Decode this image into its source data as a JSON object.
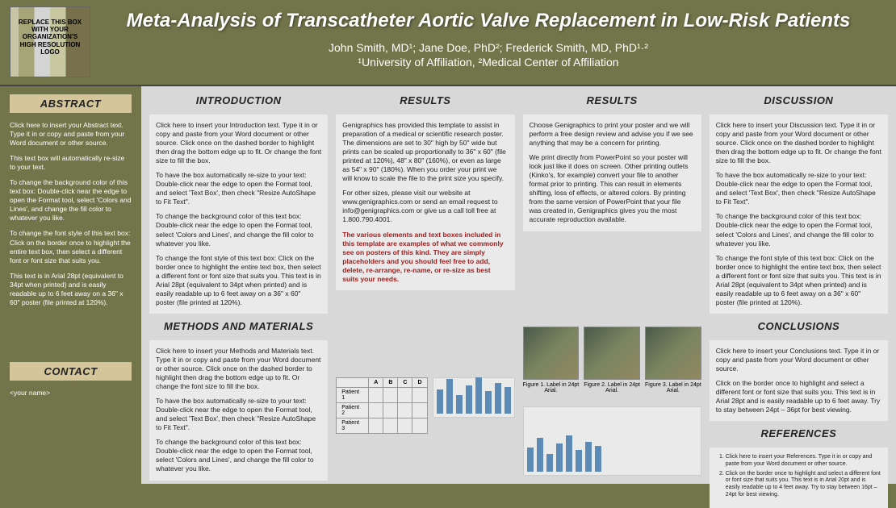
{
  "header": {
    "logo_text": "REPLACE THIS BOX WITH YOUR ORGANIZATION'S HIGH RESOLUTION LOGO",
    "title": "Meta-Analysis of Transcatheter Aortic Valve Replacement in Low-Risk Patients",
    "authors": "John Smith, MD¹; Jane Doe, PhD²; Frederick Smith, MD, PhD¹·²",
    "affiliations": "¹University of Affiliation, ²Medical Center of Affiliation"
  },
  "sidebar": {
    "abstract_heading": "ABSTRACT",
    "abstract_p1": "Click here to insert your Abstract text. Type it in or copy and paste from your Word document or other source.",
    "abstract_p2": "This text box will automatically re-size to your text.",
    "abstract_p3": "To change the background color of this text box: Double-click near the edge to open the Format tool, select 'Colors and Lines', and change the fill color to whatever you like.",
    "abstract_p4": "To change the font style of this text box: Click on the border once to highlight the entire text box, then select a different font or font size that suits you.",
    "abstract_p5": "This text is in Arial 28pt (equivalent to 34pt when printed) and is easily readable up to 6 feet away on a 36\" x 60\" poster (file printed at 120%).",
    "contact_heading": "CONTACT",
    "contact_name": "<your name>"
  },
  "intro": {
    "heading": "INTRODUCTION",
    "p1": "Click here to insert your Introduction text. Type it in or copy and paste from your Word document or other source. Click once on the dashed border to highlight then drag the bottom edge up to fit. Or change the font size to fill the box.",
    "p2": "To have the box automatically re-size to your text: Double-click near the edge to open the Format tool, and select 'Text Box', then check \"Resize AutoShape to Fit Text\".",
    "p3": "To change the background color of this text box: Double-click near the edge to open the Format tool, select 'Colors and Lines', and change the fill color to whatever you like.",
    "p4": "To change the font style of this text box: Click on the border once to highlight the entire text box, then select a different font or font size that suits you. This text is in Arial 28pt (equivalent to 34pt when printed) and is easily readable up to 6 feet away on a 36\" x 60\" poster (file printed at 120%)."
  },
  "methods": {
    "heading": "METHODS AND MATERIALS",
    "p1": "Click here to insert your Methods and Materials text. Type it in or copy and paste from your Word document or other source. Click once on the dashed border to highlight then drag the bottom edge up to fit. Or change the font size to fill the box.",
    "p2": "To have the box automatically re-size to your text: Double-click near the edge to open the Format tool, and select 'Text Box', then check \"Resize AutoShape to Fit Text\".",
    "p3": "To change the background color of this text box: Double-click near the edge to open the Format tool, select 'Colors and Lines', and change the fill color to whatever you like."
  },
  "results1": {
    "heading": "RESULTS",
    "p1": "Genigraphics has provided this template to assist in preparation of a medical or scientific research poster. The dimensions are set to 30\" high by 50\" wide but prints can be scaled up proportionally to 36\" x 60\" (file printed at 120%), 48\" x 80\" (160%), or even as large as 54\" x 90\" (180%). When you order your print we will know to scale the file to the print size you specify.",
    "p2": "For other sizes, please visit our website at www.genigraphics.com or send an email request to info@genigraphics.com or give us a call toll free at 1.800.790.4001.",
    "p3": "The various elements and text boxes included in this template are examples of what we commonly see on posters of this kind. They are simply placeholders and you should feel free to add, delete, re-arrange, re-name, or re-size as best suits your needs."
  },
  "results2": {
    "heading": "RESULTS",
    "p1": "Choose Genigraphics to print your poster and we will perform a free design review and advise you if we see anything that may be a concern for printing.",
    "p2": "We print directly from PowerPoint so your poster will look just like it does on screen. Other printing outlets (Kinko's, for example) convert your file to another format prior to printing. This can result in elements shifting, loss of effects, or altered colors. By printing from the same version of PowerPoint that your file was created in, Genigraphics gives you the most accurate reproduction available."
  },
  "figures": {
    "cap1": "Figure 1. Label in 24pt Arial.",
    "cap2": "Figure 2. Label in 24pt Arial.",
    "cap3": "Figure 3. Label in 24pt Arial."
  },
  "table": {
    "cols": [
      "",
      "A",
      "B",
      "C",
      "D"
    ],
    "rows": [
      "Patient 1",
      "Patient 2",
      "Patient 3"
    ]
  },
  "chart": {
    "values": [
      60,
      85,
      45,
      70,
      90,
      55,
      75,
      65
    ]
  },
  "discussion": {
    "heading": "DISCUSSION",
    "p1": "Click here to insert your Discussion text. Type it in or copy and paste from your Word document or other source. Click once on the dashed border to highlight then drag the bottom edge up to fit. Or change the font size to fill the box.",
    "p2": "To have the box automatically re-size to your text: Double-click near the edge to open the Format tool, and select 'Text Box', then check \"Resize AutoShape to Fit Text\".",
    "p3": "To change the background color of this text box: Double-click near the edge to open the Format tool, select 'Colors and Lines', and change the fill color to whatever you like.",
    "p4": "To change the font style of this text box: Click on the border once to highlight the entire text box, then select a different font or font size that suits you. This text is in Arial 28pt (equivalent to 34pt when printed) and is easily readable up to 6 feet away on a 36\" x 60\" poster (file printed at 120%)."
  },
  "conclusions": {
    "heading": "CONCLUSIONS",
    "p1": "Click here to insert your Conclusions text. Type it in or copy and paste from your Word document or other source.",
    "p2": "Click on the border once to highlight and select a different font or font size that suits you. This text is in Arial 28pt and is easily readable up to 6 feet away. Try to stay between 24pt – 36pt for best viewing."
  },
  "references": {
    "heading": "REFERENCES",
    "r1": "Click here to insert your References. Type it in or copy and paste from your Word document or other source.",
    "r2": "Click on the border once to highlight and select a different font or font size that suits you. This text is in Arial 20pt and is easily readable up to 4 feet away. Try to stay between 16pt – 24pt for best viewing."
  },
  "colors": {
    "body_bg": "#72754a",
    "sidebar_heading_bg": "#d4c69a",
    "content_bg": "#d8d8d8",
    "box_bg": "#eaeaea",
    "red_text": "#a02020",
    "bar_color": "#5a8ab5"
  }
}
